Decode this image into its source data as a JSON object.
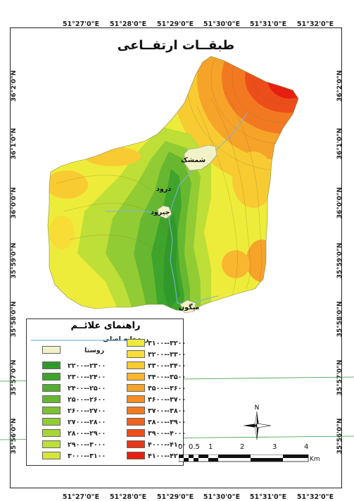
{
  "title": "طبقــات ارتفــاعی",
  "lon_ticks": [
    "51°27'0\"E",
    "51°28'0\"E",
    "51°29'0\"E",
    "51°30'0\"E",
    "51°31'0\"E",
    "51°32'0\"E"
  ],
  "lat_ticks_left": [
    "36°2'0\"N",
    "36°1'0\"N",
    "36°0'0\"N",
    "35°59'0\"N",
    "35°58'0\"N",
    "35°57'0\"N",
    "35°56'0\"N"
  ],
  "lat_ticks_right": [
    "36°2'0\"N",
    "36°1'0\"N",
    "36°0'0\"N",
    "35°59'0\"N",
    "35°58'0\"N",
    "35°57'0\"N",
    "35°56'0\"N"
  ],
  "villages": [
    {
      "name": "شمشک"
    },
    {
      "name": "درود"
    },
    {
      "name": "جیرود"
    },
    {
      "name": "میگون"
    }
  ],
  "legend": {
    "title": "راهنمای علائــم",
    "river_label": "رودخانه اصلی",
    "village_label": "روستا",
    "river_color": "#7fb2e0",
    "village_color": "#f2f2c8",
    "left_classes": [
      {
        "label": "۲۲۰۰--۲۳۰۰",
        "color": "#2f9a2a"
      },
      {
        "label": "۲۳۰۰--۲۴۰۰",
        "color": "#3ea42c"
      },
      {
        "label": "۲۴۰۰--۲۵۰۰",
        "color": "#52ae2e"
      },
      {
        "label": "۲۵۰۰--۲۶۰۰",
        "color": "#67b830"
      },
      {
        "label": "۲۶۰۰--۲۷۰۰",
        "color": "#7cc232"
      },
      {
        "label": "۲۷۰۰--۲۸۰۰",
        "color": "#92cc34"
      },
      {
        "label": "۲۸۰۰--۲۹۰۰",
        "color": "#a8d536"
      },
      {
        "label": "۲۹۰۰--۳۰۰۰",
        "color": "#bede38"
      },
      {
        "label": "۳۰۰۰--۳۱۰۰",
        "color": "#d4e63a"
      }
    ],
    "right_classes": [
      {
        "label": "۳۱۰۰--۳۲۰۰",
        "color": "#eeec3a"
      },
      {
        "label": "۳۲۰۰--۳۳۰۰",
        "color": "#f7dd36"
      },
      {
        "label": "۳۳۰۰--۳۴۰۰",
        "color": "#f8cb32"
      },
      {
        "label": "۳۴۰۰--۳۵۰۰",
        "color": "#f8b72e"
      },
      {
        "label": "۳۵۰۰--۳۶۰۰",
        "color": "#f6a32a"
      },
      {
        "label": "۳۶۰۰--۳۷۰۰",
        "color": "#f48e26"
      },
      {
        "label": "۳۷۰۰--۳۸۰۰",
        "color": "#f27922"
      },
      {
        "label": "۳۸۰۰--۳۹۰۰",
        "color": "#ef631e"
      },
      {
        "label": "۳۹۰۰--۴۰۰۰",
        "color": "#ec4d1a"
      },
      {
        "label": "۴۰۰۰--۴۱۰۰",
        "color": "#e93616"
      },
      {
        "label": "۴۱۰۰--۴۲۰۰",
        "color": "#e61f12"
      }
    ]
  },
  "north_arrow": {
    "label": "N"
  },
  "scale_bar": {
    "labels": [
      "0",
      "0.5",
      "1",
      "2",
      "3",
      "4"
    ],
    "unit": "Km"
  }
}
